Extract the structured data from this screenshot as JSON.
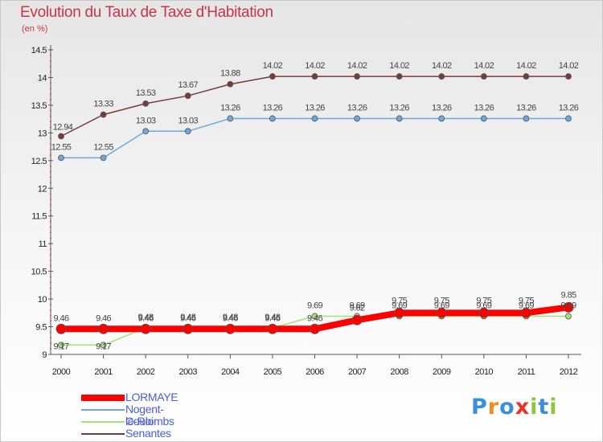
{
  "header": {
    "title": "Evolution du Taux de Taxe d'Habitation",
    "subtitle": "(en %)"
  },
  "chart_data": {
    "type": "line",
    "title": "Evolution du Taux de Taxe d'Habitation",
    "subtitle": "(en %)",
    "xlabel": "",
    "ylabel": "",
    "x": [
      "2000",
      "2001",
      "2002",
      "2003",
      "2004",
      "2005",
      "2006",
      "2007",
      "2008",
      "2009",
      "2010",
      "2011",
      "2012"
    ],
    "ylim": [
      9,
      14.5
    ],
    "yticks": [
      "9",
      "9.5",
      "10",
      "10.5",
      "11",
      "11.5",
      "12",
      "12.5",
      "13",
      "13.5",
      "14",
      "14.5"
    ],
    "grid": false,
    "legend_position": "bottom-left",
    "series": [
      {
        "name": "LORMAYE",
        "color": "#ff0000",
        "values": [
          9.46,
          9.46,
          9.46,
          9.46,
          9.46,
          9.46,
          9.46,
          9.62,
          9.75,
          9.75,
          9.75,
          9.75,
          9.85
        ],
        "labels": [
          "9.46",
          "9.46",
          "9.46",
          "9.46",
          "9.46",
          "9.46",
          "9.46",
          "9.62",
          "9.75",
          "9.75",
          "9.75",
          "9.75",
          "9.85"
        ]
      },
      {
        "name": "Nogent-le-Roi",
        "color": "#6fa8d8",
        "values": [
          12.55,
          12.55,
          13.03,
          13.03,
          13.26,
          13.26,
          13.26,
          13.26,
          13.26,
          13.26,
          13.26,
          13.26,
          13.26
        ],
        "labels": [
          "12.55",
          "12.55",
          "13.03",
          "13.03",
          "13.26",
          "13.26",
          "13.26",
          "13.26",
          "13.26",
          "13.26",
          "13.26",
          "13.26",
          "13.26"
        ]
      },
      {
        "name": "Coulombs",
        "color": "#a6e07a",
        "values": [
          9.17,
          9.17,
          9.48,
          9.48,
          9.48,
          9.48,
          9.69,
          9.69,
          9.69,
          9.69,
          9.69,
          9.69,
          9.69
        ],
        "labels": [
          "9.17",
          "9.17",
          "9.48",
          "9.48",
          "9.48",
          "9.48",
          "9.69",
          "9.69",
          "9.69",
          "9.69",
          "9.69",
          "9.69",
          "9.69"
        ]
      },
      {
        "name": "Senantes",
        "color": "#7a3a3a",
        "values": [
          12.94,
          13.33,
          13.53,
          13.67,
          13.88,
          14.02,
          14.02,
          14.02,
          14.02,
          14.02,
          14.02,
          14.02,
          14.02
        ],
        "labels": [
          "12.94",
          "13.33",
          "13.53",
          "13.67",
          "13.88",
          "14.02",
          "14.02",
          "14.02",
          "14.02",
          "14.02",
          "14.02",
          "14.02",
          "14.02"
        ]
      }
    ]
  },
  "legend": {
    "items": [
      {
        "label": "LORMAYE",
        "color": "#ff0000"
      },
      {
        "label": "Nogent-le-Roi",
        "color": "#6fa8d8"
      },
      {
        "label": "Coulombs",
        "color": "#a6e07a"
      },
      {
        "label": "Senantes",
        "color": "#7a3a3a"
      }
    ]
  },
  "logo": {
    "text": "Proxiti",
    "letters": [
      "P",
      "r",
      "o",
      "x",
      "i",
      "t",
      "i"
    ],
    "colors": [
      "#3a8fd8",
      "#f28c1c",
      "#3a8fd8",
      "#e8332a",
      "#8cc63f",
      "#3a8fd8",
      "#8cc63f"
    ]
  }
}
